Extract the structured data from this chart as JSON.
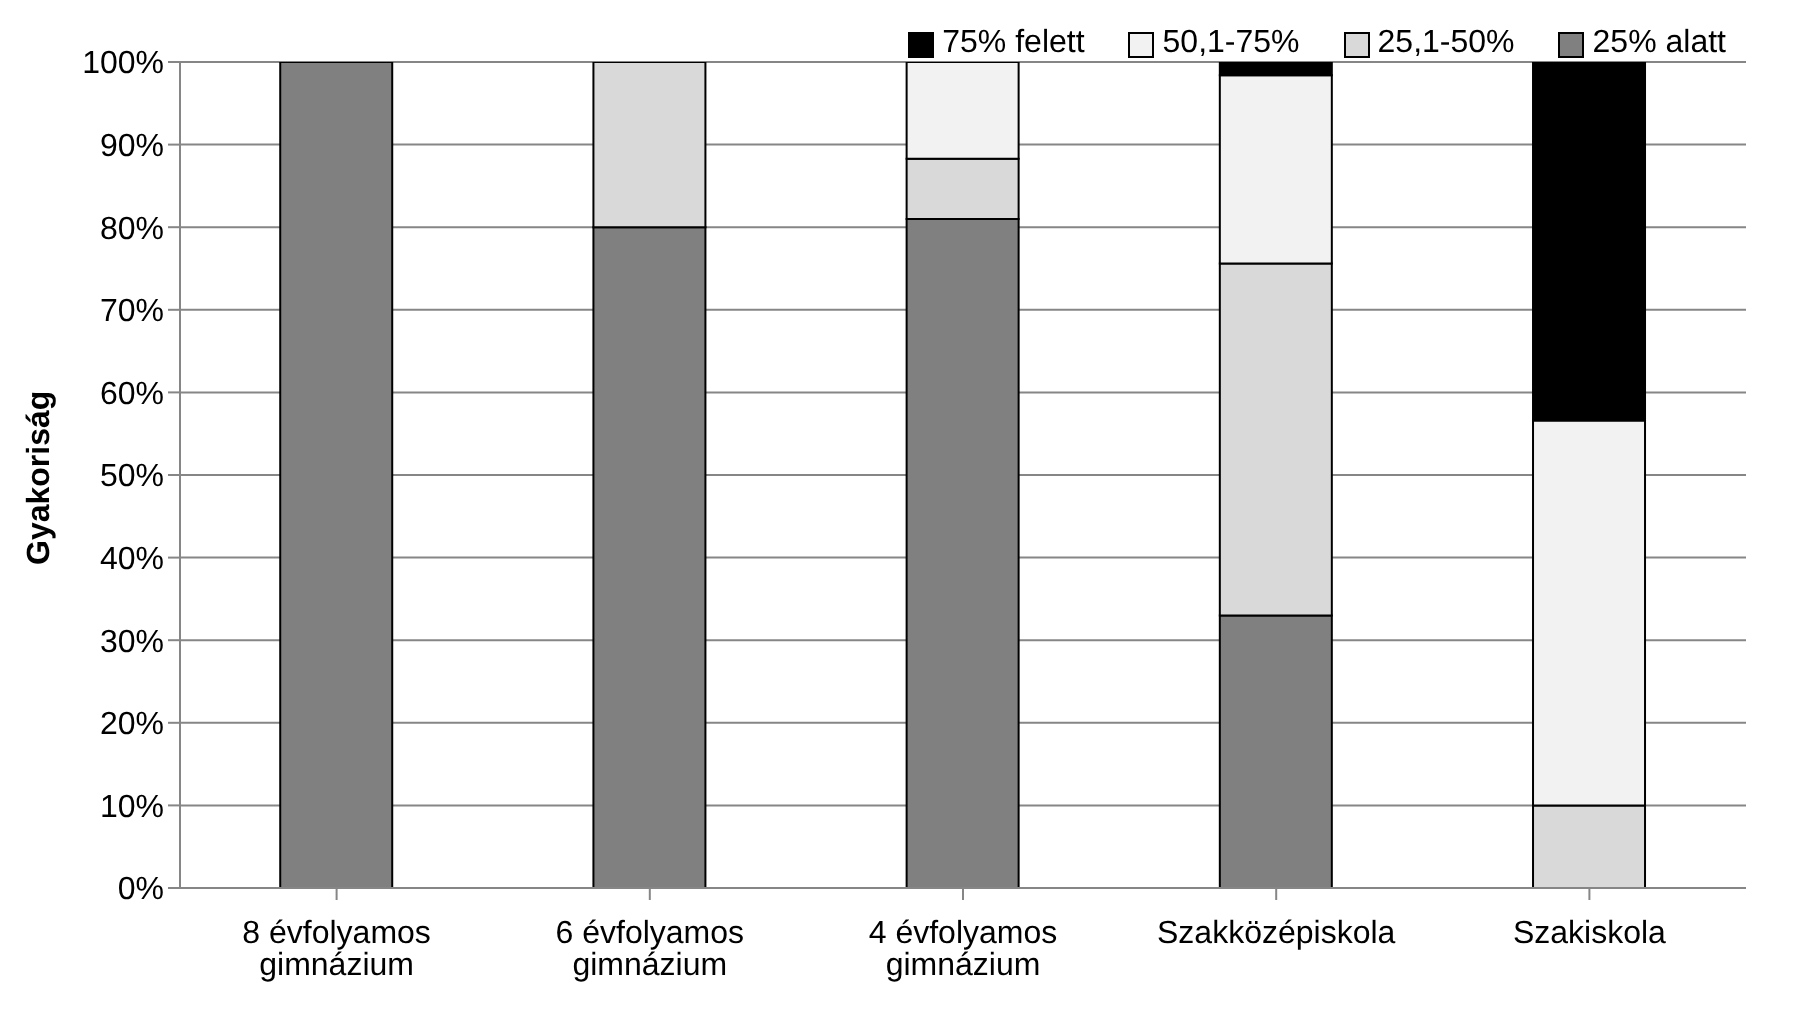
{
  "chart_data": {
    "type": "bar",
    "stacked": true,
    "ylabel": "Gyakoriság",
    "categories": [
      "8 évfolyamos gimnázium",
      "6 évfolyamos gimnázium",
      "4 évfolyamos gimnázium",
      "Szakközépiskola",
      "Szakiskola"
    ],
    "series": [
      {
        "name": "25% alatt",
        "color": "#808080",
        "values": [
          100,
          80,
          81,
          33,
          0
        ]
      },
      {
        "name": "25,1-50%",
        "color": "#d9d9d9",
        "values": [
          0,
          20,
          7.3,
          42.6,
          10
        ]
      },
      {
        "name": "50,1-75%",
        "color": "#f2f2f2",
        "values": [
          0,
          0,
          11.7,
          22.8,
          46.6
        ]
      },
      {
        "name": "75% felett",
        "color": "#000000",
        "values": [
          0,
          0,
          0,
          1.6,
          43.4
        ]
      }
    ],
    "ylim": [
      0,
      100
    ],
    "yticks": [
      {
        "value": 0,
        "label": "0%"
      },
      {
        "value": 10,
        "label": "10%"
      },
      {
        "value": 20,
        "label": "20%"
      },
      {
        "value": 30,
        "label": "30%"
      },
      {
        "value": 40,
        "label": "40%"
      },
      {
        "value": 50,
        "label": "50%"
      },
      {
        "value": 60,
        "label": "60%"
      },
      {
        "value": 70,
        "label": "70%"
      },
      {
        "value": 80,
        "label": "80%"
      },
      {
        "value": 90,
        "label": "90%"
      },
      {
        "value": 100,
        "label": "100%"
      }
    ],
    "grid": "y",
    "legend": "top right"
  }
}
